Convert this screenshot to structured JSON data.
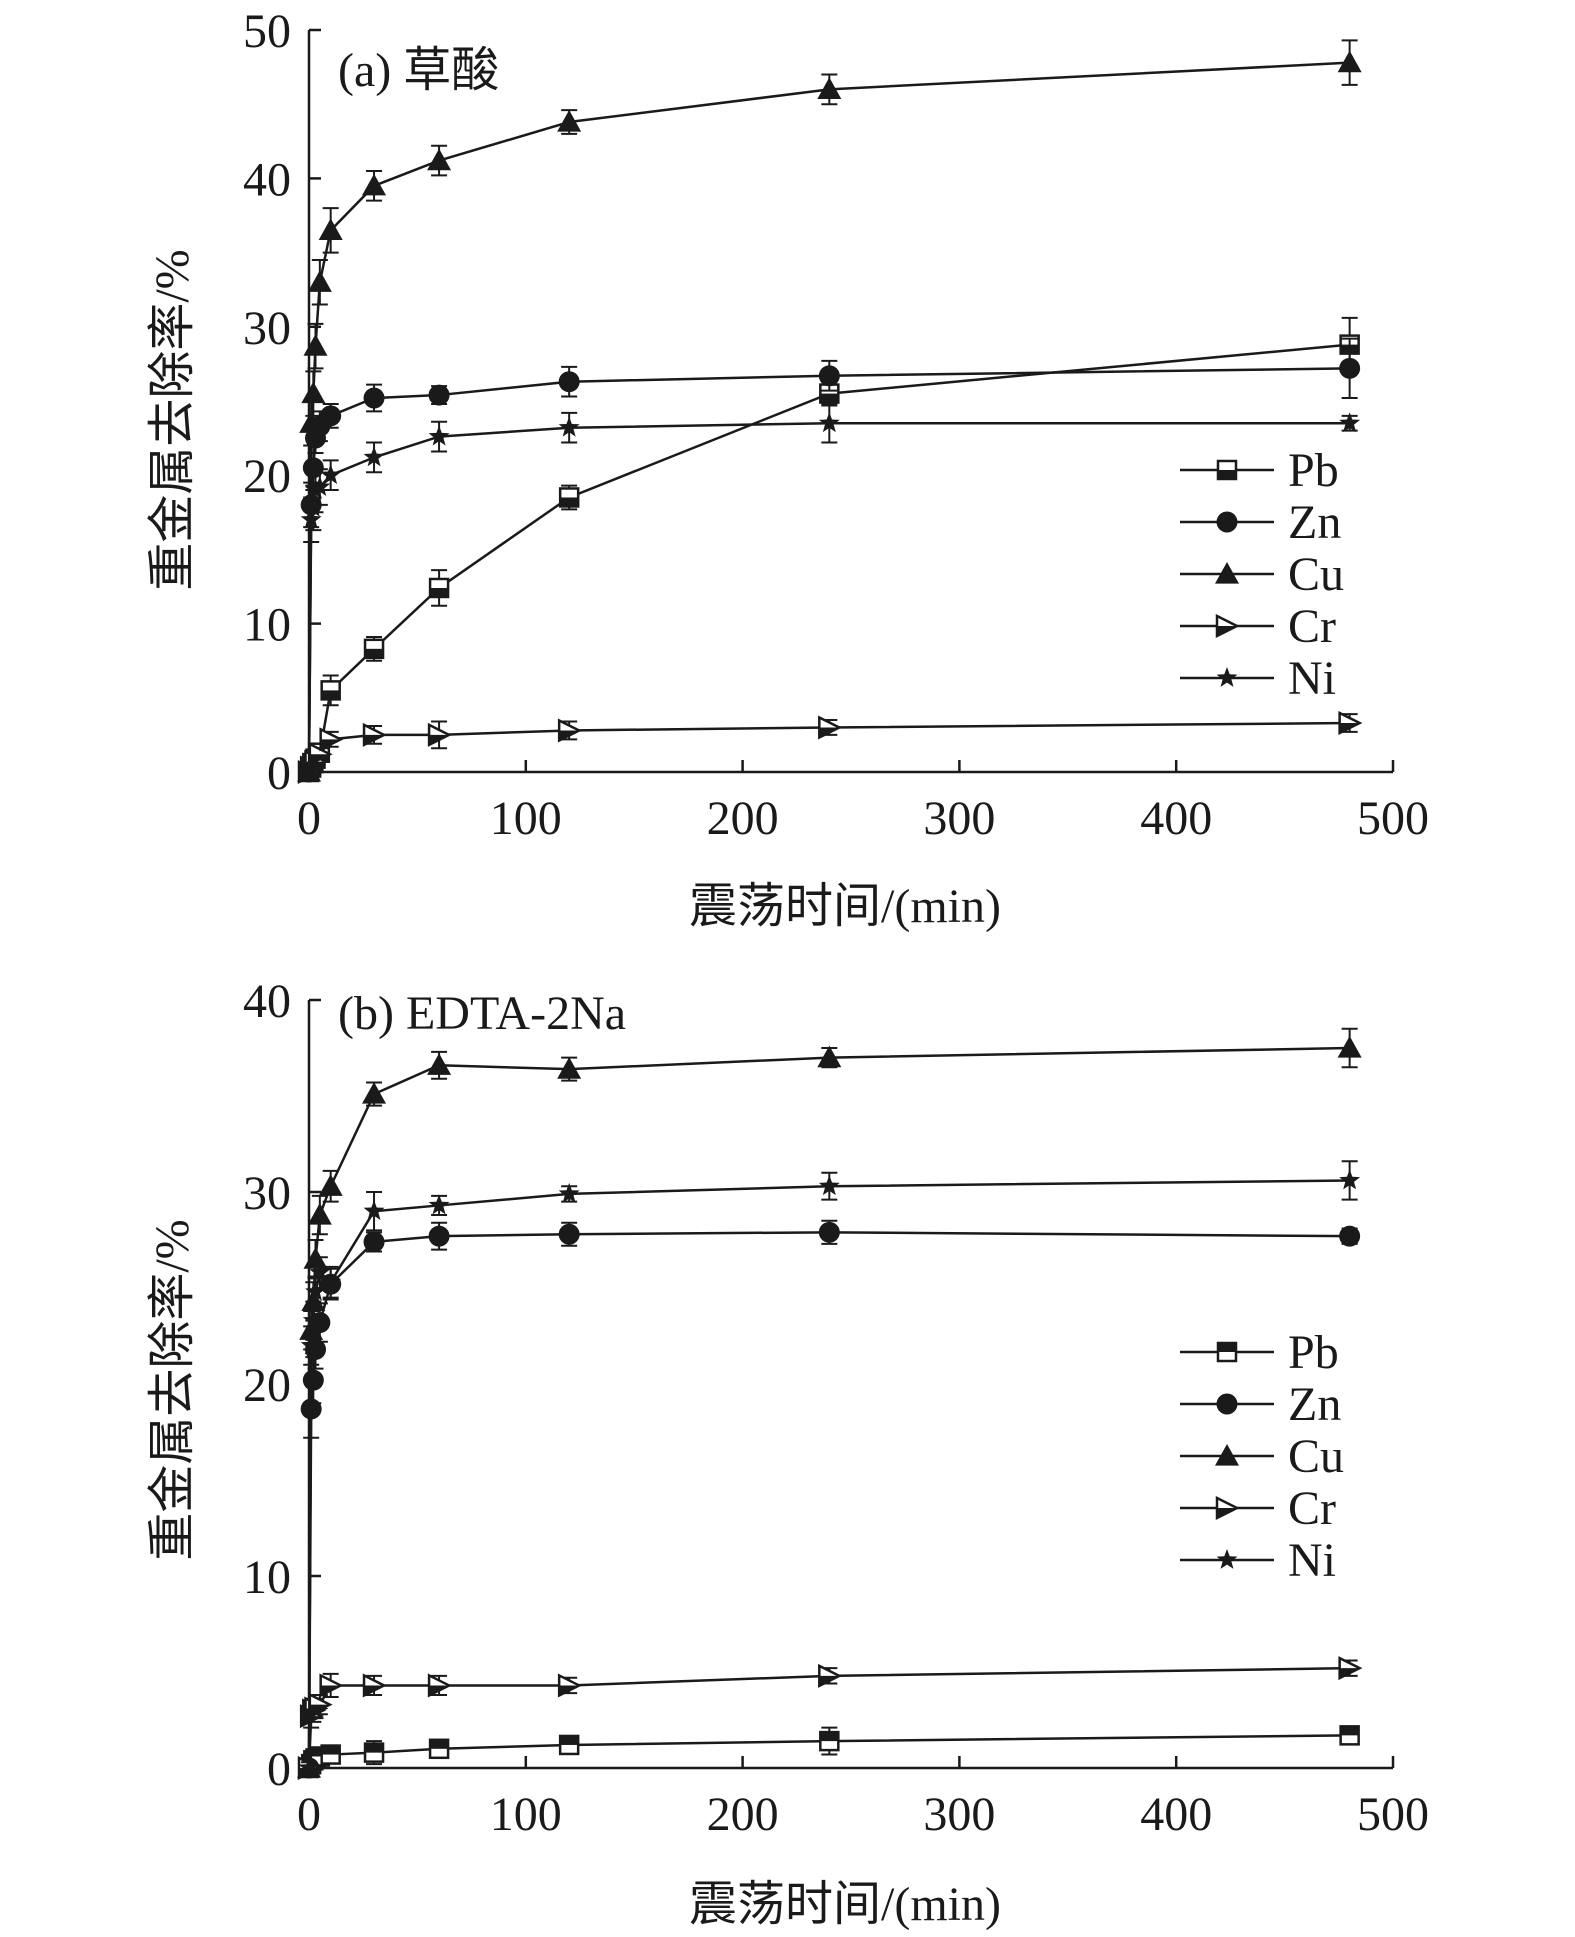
{
  "chart_data": [
    {
      "type": "line",
      "panel_label": "(a) 草酸",
      "xlabel": "震荡时间/(min)",
      "ylabel": "重金属去除率/%",
      "xlim": [
        0,
        500
      ],
      "ylim": [
        0,
        50
      ],
      "xticks": [
        0,
        100,
        200,
        300,
        400,
        500
      ],
      "yticks": [
        0,
        10,
        20,
        30,
        40,
        50
      ],
      "legend_position": "right-middle",
      "x": [
        0,
        1,
        2,
        3,
        5,
        10,
        30,
        60,
        120,
        240,
        480
      ],
      "series": [
        {
          "name": "Pb",
          "marker": "square-open-bottom",
          "values": [
            0,
            0.3,
            0.6,
            0.9,
            1.3,
            5.5,
            8.3,
            12.4,
            18.5,
            25.5,
            28.8
          ],
          "errors": [
            0.3,
            0.3,
            0.3,
            0.4,
            0.5,
            1.0,
            0.8,
            1.2,
            0.8,
            0.8,
            1.8
          ]
        },
        {
          "name": "Zn",
          "marker": "circle-filled",
          "values": [
            0,
            18,
            20.5,
            22.5,
            23.3,
            24,
            25.2,
            25.4,
            26.3,
            26.7,
            27.2
          ],
          "errors": [
            0.3,
            1.5,
            1.5,
            1.0,
            1.0,
            0.8,
            0.9,
            0.6,
            1.0,
            1.0,
            2.0
          ]
        },
        {
          "name": "Cu",
          "marker": "triangle-filled",
          "values": [
            0,
            23.5,
            25.5,
            28.7,
            33,
            36.5,
            39.5,
            41.2,
            43.8,
            46,
            47.8
          ],
          "errors": [
            0.3,
            1.5,
            1.5,
            1.5,
            1.5,
            1.5,
            1.0,
            1.0,
            0.8,
            1.0,
            1.5
          ]
        },
        {
          "name": "Cr",
          "marker": "triangle-right-half",
          "values": [
            0,
            0.3,
            0.5,
            0.7,
            1.2,
            2.2,
            2.5,
            2.5,
            2.8,
            3,
            3.3
          ],
          "errors": [
            0.2,
            0.2,
            0.2,
            0.3,
            0.4,
            0.5,
            0.6,
            0.9,
            0.6,
            0.5,
            0.6
          ]
        },
        {
          "name": "Ni",
          "marker": "star",
          "values": [
            0,
            17,
            17.8,
            19,
            19.2,
            20,
            21.2,
            22.6,
            23.2,
            23.5,
            23.5
          ],
          "errors": [
            0.3,
            1.5,
            1.5,
            1.5,
            1.2,
            1.0,
            1.0,
            1.0,
            1.0,
            1.3,
            0.5
          ]
        }
      ]
    },
    {
      "type": "line",
      "panel_label": "(b) EDTA-2Na",
      "xlabel": "震荡时间/(min)",
      "ylabel": "重金属去除率/%",
      "xlim": [
        0,
        500
      ],
      "ylim": [
        0,
        40
      ],
      "xticks": [
        0,
        100,
        200,
        300,
        400,
        500
      ],
      "yticks": [
        0,
        10,
        20,
        30,
        40
      ],
      "legend_position": "right-middle",
      "x": [
        0,
        1,
        2,
        3,
        5,
        10,
        30,
        60,
        120,
        240,
        480
      ],
      "series": [
        {
          "name": "Pb",
          "marker": "square-filled-top",
          "values": [
            0,
            0.2,
            0.4,
            0.5,
            0.6,
            0.7,
            0.8,
            1,
            1.2,
            1.4,
            1.7
          ],
          "errors": [
            0.2,
            0.2,
            0.2,
            0.3,
            0.3,
            0.4,
            0.6,
            0.4,
            0.4,
            0.7,
            0.4
          ]
        },
        {
          "name": "Zn",
          "marker": "circle-filled",
          "values": [
            0,
            18.7,
            20.2,
            21.8,
            23.2,
            25.2,
            27.4,
            27.7,
            27.8,
            27.9,
            27.7
          ],
          "errors": [
            0.3,
            1.5,
            1.2,
            1.0,
            1.0,
            0.8,
            0.5,
            0.7,
            0.6,
            0.6,
            0.4
          ]
        },
        {
          "name": "Cu",
          "marker": "triangle-filled",
          "values": [
            0,
            22.8,
            24.3,
            26.5,
            28.8,
            30.3,
            35.1,
            36.6,
            36.4,
            37,
            37.5
          ],
          "errors": [
            0.3,
            1.0,
            1.0,
            1.0,
            1.0,
            0.8,
            0.6,
            0.7,
            0.6,
            0.5,
            1.0
          ]
        },
        {
          "name": "Cr",
          "marker": "triangle-right-half",
          "values": [
            0,
            2.7,
            3,
            3.1,
            3.3,
            4.3,
            4.3,
            4.3,
            4.3,
            4.8,
            5.2
          ],
          "errors": [
            0.2,
            0.6,
            0.6,
            0.5,
            0.5,
            0.6,
            0.5,
            0.5,
            0.4,
            0.4,
            0.4
          ]
        },
        {
          "name": "Ni",
          "marker": "star",
          "values": [
            0,
            22,
            23.3,
            24.8,
            25.8,
            25.3,
            29,
            29.3,
            29.9,
            30.3,
            30.6
          ],
          "errors": [
            0.3,
            1.0,
            1.0,
            0.8,
            0.8,
            0.8,
            1.0,
            0.5,
            0.4,
            0.7,
            1.0
          ]
        }
      ]
    }
  ]
}
